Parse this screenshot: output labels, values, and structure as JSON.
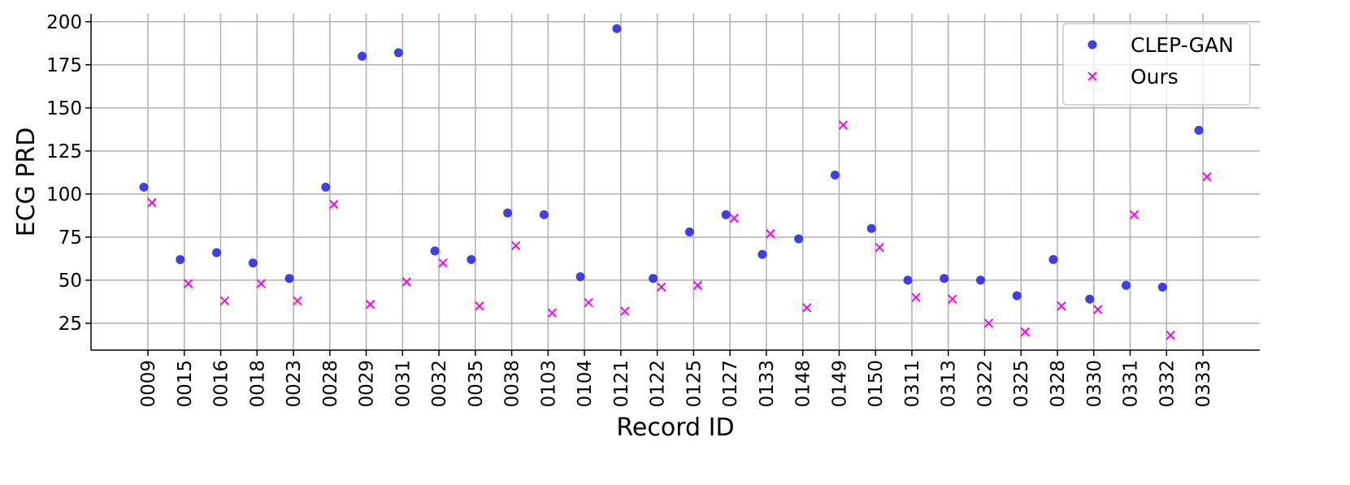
{
  "chart_data": {
    "type": "scatter",
    "x_label": "Record ID",
    "y_label": "ECG PRD",
    "categories": [
      "0009",
      "0015",
      "0016",
      "0018",
      "0023",
      "0028",
      "0029",
      "0031",
      "0032",
      "0035",
      "0038",
      "0103",
      "0104",
      "0121",
      "0122",
      "0125",
      "0127",
      "0133",
      "0148",
      "0149",
      "0150",
      "0311",
      "0313",
      "0322",
      "0325",
      "0328",
      "0330",
      "0331",
      "0332",
      "0333"
    ],
    "series": [
      {
        "name": "CLEP-GAN",
        "color": "#2a2ae6",
        "marker": "circle",
        "values": [
          104,
          62,
          66,
          60,
          51,
          104,
          180,
          182,
          67,
          62,
          89,
          88,
          52,
          196,
          51,
          78,
          88,
          65,
          74,
          111,
          80,
          50,
          51,
          50,
          41,
          62,
          39,
          47,
          46,
          137
        ]
      },
      {
        "name": "Ours",
        "color": "#ff00ff",
        "marker": "cross",
        "values": [
          95,
          48,
          38,
          48,
          38,
          94,
          36,
          49,
          60,
          35,
          70,
          31,
          37,
          32,
          46,
          47,
          86,
          77,
          34,
          140,
          69,
          40,
          39,
          25,
          20,
          35,
          33,
          88,
          18,
          110
        ]
      }
    ],
    "ylim": [
      9.4,
      204.6
    ],
    "yticks": [
      25,
      50,
      75,
      100,
      125,
      150,
      175,
      200
    ],
    "grid": true,
    "legend": "upper right"
  }
}
